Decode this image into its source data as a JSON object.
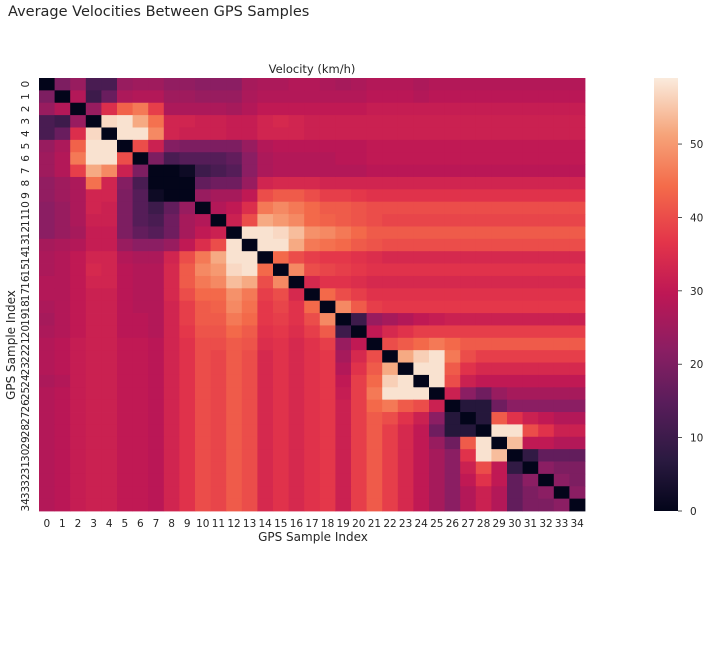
{
  "figure": {
    "suptitle": "Average Velocities Between GPS Samples"
  },
  "chart_data": {
    "type": "heatmap",
    "title": "Velocity (km/h)",
    "xlabel": "GPS Sample Index",
    "ylabel": "GPS Sample Index",
    "x_ticks": [
      "0",
      "1",
      "2",
      "3",
      "4",
      "5",
      "6",
      "7",
      "8",
      "9",
      "10",
      "11",
      "12",
      "13",
      "14",
      "15",
      "16",
      "17",
      "18",
      "19",
      "20",
      "21",
      "22",
      "23",
      "24",
      "25",
      "26",
      "27",
      "28",
      "29",
      "30",
      "31",
      "32",
      "33",
      "34"
    ],
    "y_ticks": [
      "0",
      "1",
      "2",
      "3",
      "4",
      "5",
      "6",
      "7",
      "8",
      "9",
      "10",
      "11",
      "12",
      "13",
      "14",
      "15",
      "16",
      "17",
      "18",
      "19",
      "20",
      "21",
      "22",
      "23",
      "24",
      "25",
      "26",
      "27",
      "28",
      "29",
      "30",
      "31",
      "32",
      "33",
      "34"
    ],
    "colorbar": {
      "min": 0,
      "max": 59,
      "ticks": [
        "0",
        "10",
        "20",
        "30",
        "40",
        "50"
      ]
    },
    "colormap": "rocket",
    "values": [
      [
        0,
        20,
        24,
        12,
        12,
        24,
        25,
        25,
        23,
        23,
        22,
        22,
        22,
        26,
        27,
        27,
        28,
        28,
        27,
        26,
        27,
        28,
        28,
        28,
        27,
        28,
        28,
        28,
        28,
        28,
        28,
        28,
        28,
        28,
        28
      ],
      [
        20,
        0,
        28,
        10,
        17,
        27,
        28,
        28,
        25,
        25,
        24,
        24,
        24,
        27,
        28,
        28,
        28,
        28,
        28,
        28,
        28,
        29,
        29,
        29,
        28,
        29,
        29,
        29,
        29,
        29,
        29,
        29,
        29,
        29,
        29
      ],
      [
        24,
        28,
        0,
        24,
        35,
        43,
        46,
        38,
        27,
        27,
        27,
        27,
        26,
        28,
        30,
        30,
        30,
        30,
        30,
        30,
        30,
        31,
        31,
        31,
        31,
        31,
        31,
        31,
        31,
        31,
        31,
        31,
        31,
        31,
        31
      ],
      [
        12,
        10,
        24,
        0,
        57,
        58,
        52,
        45,
        33,
        33,
        32,
        32,
        31,
        31,
        33,
        34,
        33,
        32,
        32,
        32,
        32,
        32,
        32,
        32,
        32,
        32,
        32,
        32,
        32,
        32,
        32,
        32,
        32,
        32,
        32
      ],
      [
        12,
        17,
        35,
        57,
        0,
        58,
        58,
        48,
        33,
        32,
        32,
        32,
        31,
        31,
        33,
        33,
        33,
        32,
        32,
        32,
        32,
        32,
        32,
        32,
        32,
        32,
        32,
        32,
        32,
        32,
        32,
        32,
        32,
        32,
        32
      ],
      [
        24,
        27,
        43,
        58,
        58,
        0,
        40,
        32,
        21,
        20,
        20,
        20,
        20,
        24,
        28,
        29,
        29,
        29,
        29,
        29,
        29,
        30,
        30,
        30,
        30,
        30,
        30,
        30,
        30,
        30,
        30,
        30,
        30,
        30,
        30
      ],
      [
        25,
        28,
        46,
        58,
        58,
        40,
        0,
        20,
        12,
        14,
        14,
        14,
        16,
        22,
        27,
        28,
        28,
        28,
        28,
        29,
        29,
        30,
        30,
        30,
        30,
        30,
        30,
        30,
        30,
        30,
        30,
        30,
        30,
        30,
        30
      ],
      [
        25,
        28,
        38,
        52,
        48,
        32,
        20,
        0,
        0,
        2,
        10,
        12,
        14,
        22,
        27,
        28,
        28,
        28,
        28,
        28,
        28,
        29,
        29,
        29,
        29,
        29,
        29,
        29,
        29,
        29,
        29,
        29,
        29,
        29,
        29
      ],
      [
        23,
        25,
        27,
        45,
        33,
        21,
        12,
        0,
        0,
        0,
        16,
        18,
        18,
        24,
        33,
        34,
        34,
        34,
        33,
        33,
        33,
        33,
        33,
        33,
        33,
        33,
        33,
        33,
        33,
        33,
        33,
        33,
        33,
        33,
        33
      ],
      [
        23,
        25,
        27,
        33,
        33,
        20,
        14,
        2,
        0,
        0,
        24,
        26,
        26,
        30,
        40,
        42,
        42,
        40,
        38,
        38,
        37,
        36,
        36,
        36,
        36,
        36,
        36,
        36,
        36,
        36,
        36,
        36,
        36,
        36,
        36
      ],
      [
        22,
        24,
        27,
        33,
        32,
        20,
        14,
        10,
        16,
        24,
        0,
        28,
        30,
        35,
        46,
        48,
        46,
        44,
        42,
        42,
        41,
        40,
        40,
        40,
        40,
        40,
        40,
        40,
        40,
        40,
        40,
        40,
        40,
        40,
        40
      ],
      [
        22,
        24,
        27,
        32,
        32,
        20,
        14,
        12,
        18,
        26,
        28,
        0,
        32,
        40,
        52,
        50,
        48,
        44,
        43,
        42,
        41,
        40,
        39,
        39,
        39,
        39,
        39,
        39,
        39,
        39,
        39,
        39,
        39,
        39,
        39
      ],
      [
        22,
        24,
        26,
        31,
        31,
        20,
        16,
        14,
        18,
        26,
        30,
        32,
        0,
        58,
        58,
        57,
        54,
        49,
        48,
        46,
        44,
        42,
        42,
        42,
        42,
        42,
        42,
        42,
        42,
        42,
        42,
        42,
        42,
        42,
        42
      ],
      [
        26,
        27,
        28,
        31,
        31,
        24,
        22,
        22,
        24,
        30,
        35,
        40,
        58,
        0,
        58,
        58,
        52,
        46,
        45,
        44,
        42,
        41,
        40,
        40,
        40,
        40,
        40,
        40,
        40,
        40,
        40,
        40,
        40,
        40,
        40
      ],
      [
        27,
        28,
        30,
        33,
        33,
        28,
        27,
        27,
        33,
        40,
        46,
        52,
        58,
        58,
        0,
        44,
        40,
        38,
        37,
        37,
        36,
        35,
        34,
        34,
        34,
        34,
        34,
        34,
        34,
        34,
        34,
        34,
        34,
        34,
        34
      ],
      [
        27,
        28,
        30,
        34,
        33,
        29,
        28,
        28,
        34,
        42,
        48,
        50,
        57,
        58,
        44,
        0,
        48,
        40,
        39,
        38,
        37,
        36,
        36,
        36,
        36,
        36,
        36,
        36,
        36,
        36,
        36,
        36,
        36,
        36,
        36
      ],
      [
        28,
        28,
        30,
        33,
        33,
        29,
        28,
        28,
        34,
        42,
        46,
        48,
        54,
        52,
        40,
        48,
        0,
        34,
        36,
        36,
        35,
        34,
        34,
        34,
        34,
        34,
        34,
        34,
        34,
        34,
        34,
        34,
        34,
        34,
        34
      ],
      [
        28,
        28,
        30,
        32,
        32,
        29,
        28,
        28,
        34,
        40,
        44,
        44,
        49,
        46,
        38,
        40,
        34,
        0,
        44,
        40,
        38,
        36,
        36,
        36,
        36,
        36,
        36,
        36,
        36,
        36,
        36,
        36,
        36,
        36,
        36
      ],
      [
        27,
        28,
        30,
        32,
        32,
        29,
        28,
        28,
        33,
        38,
        42,
        43,
        48,
        45,
        37,
        39,
        36,
        44,
        0,
        48,
        42,
        38,
        37,
        37,
        37,
        37,
        37,
        37,
        37,
        37,
        37,
        37,
        37,
        37,
        37
      ],
      [
        26,
        28,
        30,
        32,
        32,
        29,
        29,
        28,
        33,
        38,
        42,
        42,
        46,
        44,
        37,
        38,
        36,
        40,
        48,
        0,
        10,
        24,
        26,
        28,
        30,
        31,
        32,
        32,
        32,
        32,
        32,
        32,
        32,
        32,
        32
      ],
      [
        27,
        28,
        30,
        32,
        32,
        29,
        29,
        28,
        33,
        37,
        41,
        41,
        44,
        42,
        36,
        37,
        35,
        38,
        42,
        10,
        0,
        30,
        34,
        36,
        38,
        38,
        38,
        38,
        38,
        38,
        38,
        38,
        38,
        38,
        38
      ],
      [
        28,
        29,
        31,
        32,
        32,
        30,
        30,
        29,
        33,
        36,
        40,
        40,
        42,
        41,
        35,
        36,
        34,
        36,
        38,
        24,
        30,
        0,
        40,
        42,
        44,
        46,
        44,
        42,
        42,
        42,
        42,
        42,
        42,
        42,
        42
      ],
      [
        28,
        29,
        31,
        32,
        32,
        30,
        30,
        29,
        33,
        36,
        40,
        39,
        42,
        40,
        34,
        36,
        34,
        36,
        37,
        26,
        34,
        40,
        0,
        52,
        56,
        58,
        46,
        40,
        38,
        38,
        38,
        38,
        38,
        38,
        38
      ],
      [
        28,
        29,
        31,
        32,
        32,
        30,
        30,
        29,
        33,
        36,
        40,
        39,
        42,
        40,
        34,
        36,
        34,
        36,
        37,
        28,
        36,
        42,
        52,
        0,
        58,
        58,
        42,
        36,
        34,
        34,
        34,
        34,
        34,
        34,
        34
      ],
      [
        27,
        28,
        31,
        32,
        32,
        30,
        30,
        29,
        33,
        36,
        40,
        39,
        42,
        40,
        34,
        36,
        34,
        36,
        37,
        30,
        38,
        44,
        56,
        58,
        0,
        58,
        40,
        32,
        30,
        30,
        30,
        30,
        30,
        30,
        30
      ],
      [
        28,
        29,
        31,
        32,
        32,
        30,
        30,
        29,
        33,
        36,
        40,
        39,
        42,
        40,
        34,
        36,
        34,
        36,
        37,
        31,
        38,
        46,
        58,
        58,
        58,
        0,
        32,
        22,
        18,
        24,
        26,
        26,
        26,
        26,
        26
      ],
      [
        28,
        29,
        31,
        32,
        32,
        30,
        30,
        29,
        33,
        36,
        40,
        39,
        42,
        40,
        34,
        36,
        34,
        36,
        37,
        32,
        38,
        44,
        46,
        42,
        40,
        32,
        0,
        6,
        6,
        18,
        22,
        22,
        22,
        22,
        22
      ],
      [
        28,
        29,
        31,
        32,
        32,
        30,
        30,
        29,
        33,
        36,
        40,
        39,
        42,
        40,
        34,
        36,
        34,
        36,
        37,
        32,
        38,
        42,
        40,
        36,
        32,
        22,
        6,
        0,
        6,
        42,
        36,
        32,
        30,
        28,
        28
      ],
      [
        28,
        29,
        31,
        32,
        32,
        30,
        30,
        29,
        33,
        36,
        40,
        39,
        42,
        40,
        34,
        36,
        34,
        36,
        37,
        32,
        38,
        42,
        38,
        34,
        30,
        18,
        6,
        6,
        0,
        58,
        58,
        40,
        36,
        32,
        32
      ],
      [
        28,
        29,
        31,
        32,
        32,
        30,
        30,
        29,
        33,
        36,
        40,
        39,
        42,
        40,
        34,
        36,
        34,
        36,
        37,
        32,
        38,
        42,
        38,
        34,
        30,
        24,
        18,
        42,
        58,
        0,
        54,
        30,
        30,
        28,
        28
      ],
      [
        28,
        29,
        31,
        32,
        32,
        30,
        30,
        29,
        33,
        36,
        40,
        39,
        42,
        40,
        34,
        36,
        34,
        36,
        37,
        32,
        38,
        42,
        38,
        34,
        30,
        26,
        22,
        36,
        58,
        54,
        0,
        8,
        16,
        16,
        16
      ],
      [
        28,
        29,
        31,
        32,
        32,
        30,
        30,
        29,
        33,
        36,
        40,
        39,
        42,
        40,
        34,
        36,
        34,
        36,
        37,
        32,
        38,
        42,
        38,
        34,
        30,
        26,
        22,
        32,
        40,
        30,
        8,
        0,
        22,
        20,
        20
      ],
      [
        28,
        29,
        31,
        32,
        32,
        30,
        30,
        29,
        33,
        36,
        40,
        39,
        42,
        40,
        34,
        36,
        34,
        36,
        37,
        32,
        38,
        42,
        38,
        34,
        30,
        26,
        22,
        30,
        36,
        30,
        16,
        22,
        0,
        22,
        20
      ],
      [
        28,
        29,
        31,
        32,
        32,
        30,
        30,
        29,
        33,
        36,
        40,
        39,
        42,
        40,
        34,
        36,
        34,
        36,
        37,
        32,
        38,
        42,
        38,
        34,
        30,
        26,
        22,
        28,
        32,
        28,
        16,
        20,
        22,
        0,
        22
      ],
      [
        28,
        29,
        31,
        32,
        32,
        30,
        30,
        29,
        33,
        36,
        40,
        39,
        42,
        40,
        34,
        36,
        34,
        36,
        37,
        32,
        38,
        42,
        38,
        34,
        30,
        26,
        22,
        28,
        32,
        28,
        16,
        20,
        20,
        22,
        0
      ]
    ]
  }
}
